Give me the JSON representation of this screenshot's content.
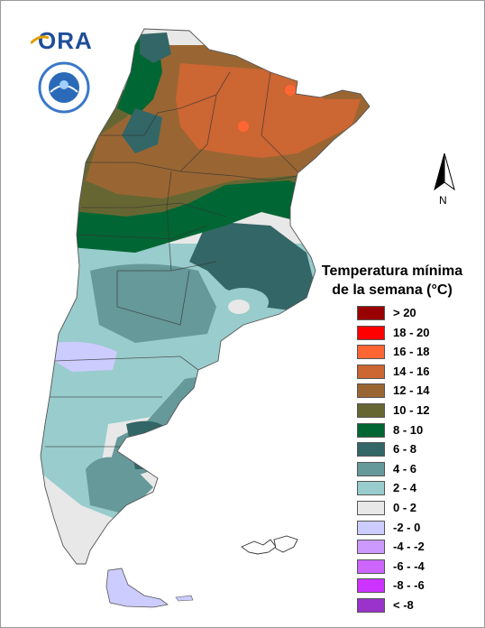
{
  "logo": {
    "text": "ORA"
  },
  "emblem": {
    "name": "smn-argentina-emblem"
  },
  "north_arrow": {
    "label": "N"
  },
  "legend": {
    "title_line1": "Temperatura mínima",
    "title_line2": "de la semana (°C)",
    "items": [
      {
        "label": "> 20",
        "color": "#990000"
      },
      {
        "label": "18 - 20",
        "color": "#ff0000"
      },
      {
        "label": "16 - 18",
        "color": "#ff6633"
      },
      {
        "label": "14 - 16",
        "color": "#cc6633"
      },
      {
        "label": "12 - 14",
        "color": "#996633"
      },
      {
        "label": "10 - 12",
        "color": "#666633"
      },
      {
        "label": "8 - 10",
        "color": "#006633"
      },
      {
        "label": "6 - 8",
        "color": "#336666"
      },
      {
        "label": "4 - 6",
        "color": "#669999"
      },
      {
        "label": "2 - 4",
        "color": "#99cccc"
      },
      {
        "label": "0 - 2",
        "color": "#e8e8e8"
      },
      {
        "label": "-2 - 0",
        "color": "#ccccff"
      },
      {
        "label": "-4 - -2",
        "color": "#cc99ff"
      },
      {
        "label": "-6 - -4",
        "color": "#cc66ff"
      },
      {
        "label": "-8 - -6",
        "color": "#cc33ff"
      },
      {
        "label": "< -8",
        "color": "#9933cc"
      }
    ]
  }
}
